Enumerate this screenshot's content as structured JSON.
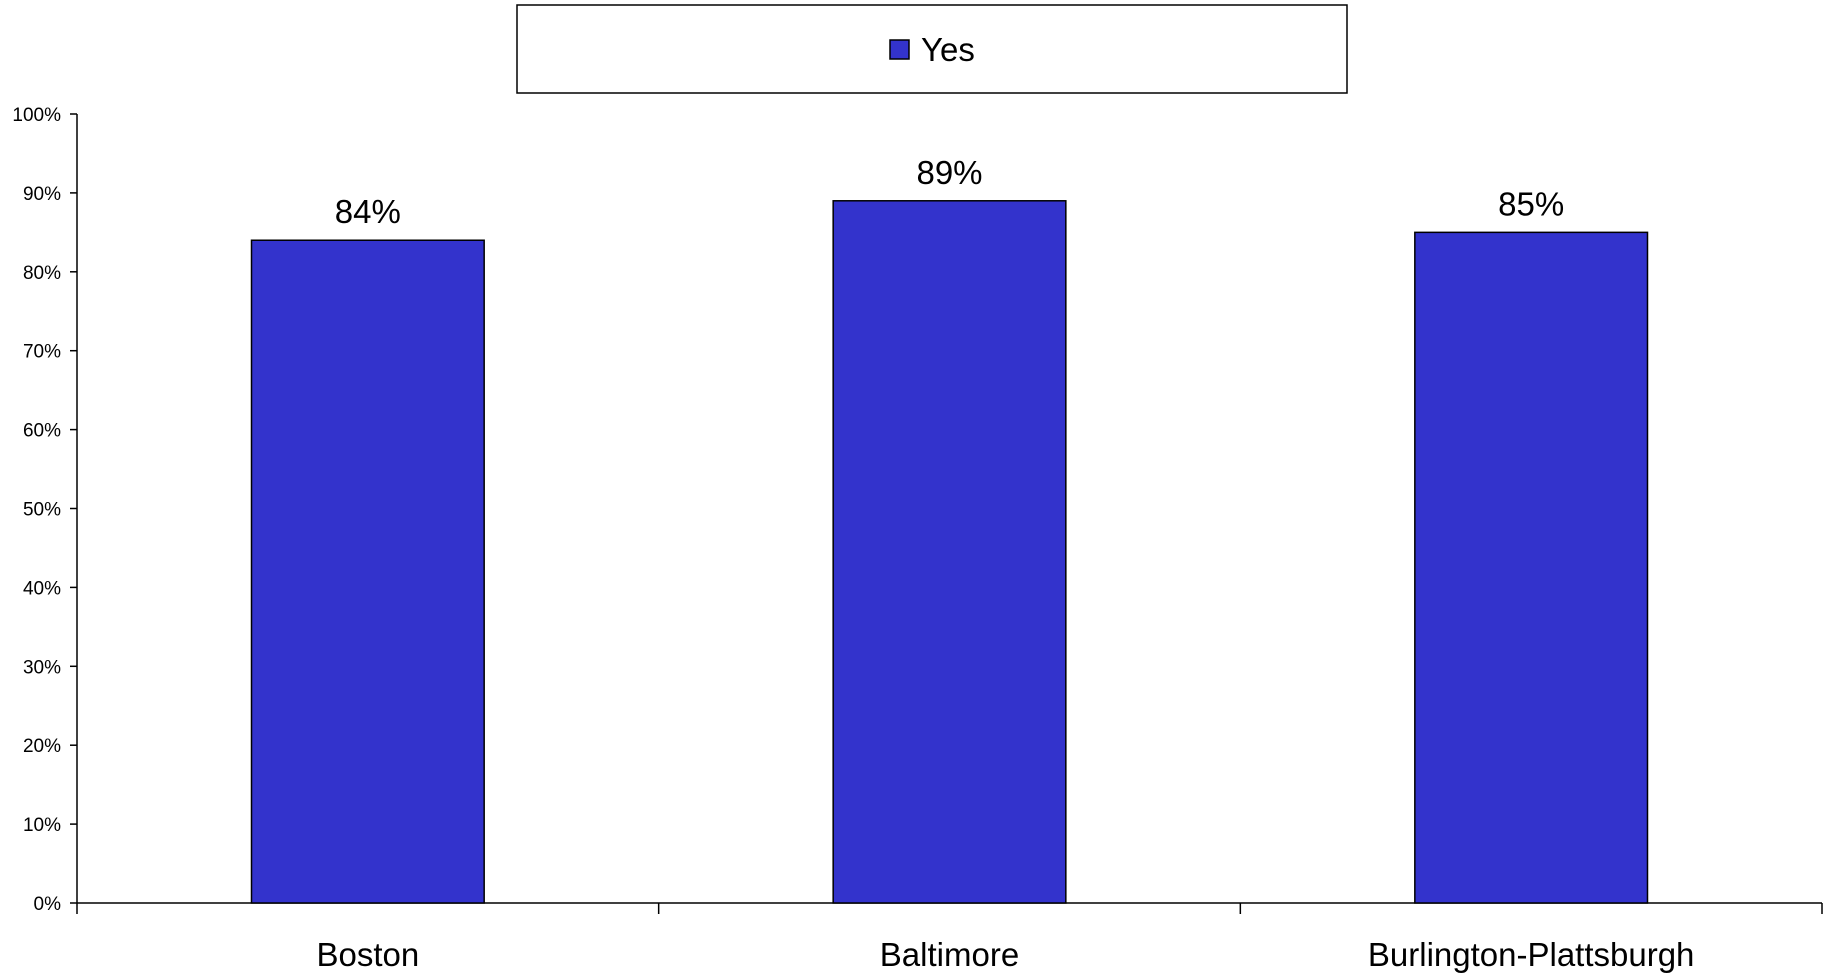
{
  "chart_data": {
    "type": "bar",
    "categories": [
      "Boston",
      "Baltimore",
      "Burlington-Plattsburgh"
    ],
    "series": [
      {
        "name": "Yes",
        "values": [
          84,
          89,
          85
        ],
        "color": "#3333CC"
      }
    ],
    "data_labels": [
      "84%",
      "89%",
      "85%"
    ],
    "y_ticks": [
      "0%",
      "10%",
      "20%",
      "30%",
      "40%",
      "50%",
      "60%",
      "70%",
      "80%",
      "90%",
      "100%"
    ],
    "ylim": [
      0,
      100
    ],
    "legend": {
      "placement": "top-center",
      "entries": [
        "Yes"
      ]
    },
    "grid": false
  }
}
